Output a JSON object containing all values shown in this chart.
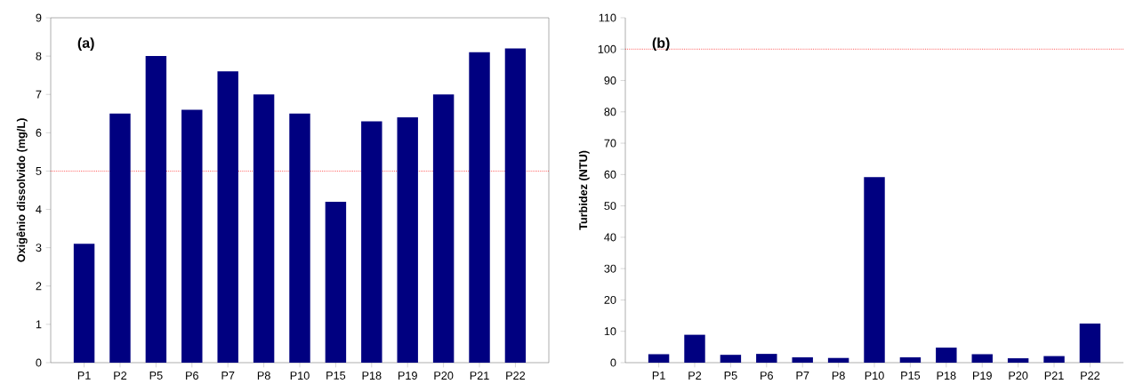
{
  "chart_data": [
    {
      "type": "bar",
      "ylabel": "Oxigênio dissolvido (mg/L)",
      "annotations": [
        "**(a)**"
      ],
      "categories": [
        "P1",
        "P2",
        "P5",
        "P6",
        "P7",
        "P8",
        "P10",
        "P15",
        "P18",
        "P19",
        "P20",
        "P21",
        "P22"
      ],
      "values": [
        3.1,
        6.5,
        8.0,
        6.6,
        7.6,
        7.0,
        6.5,
        4.2,
        6.3,
        6.4,
        7.0,
        8.1,
        8.2
      ],
      "color": "#000080",
      "ylim": [
        0,
        9
      ],
      "yticks": [
        0,
        1,
        2,
        3,
        4,
        5,
        6,
        7,
        8,
        9
      ],
      "ref_lines": [
        {
          "axis": "y",
          "value": 5,
          "color": "#ff0000",
          "line_style": "dotted"
        }
      ]
    },
    {
      "type": "bar",
      "ylabel": "Turbidez (NTU)",
      "annotations": [
        "**(b)**"
      ],
      "categories": [
        "P1",
        "P2",
        "P5",
        "P6",
        "P7",
        "P8",
        "P10",
        "P15",
        "P18",
        "P19",
        "P20",
        "P21",
        "P22"
      ],
      "values": [
        2.7,
        8.9,
        2.5,
        2.8,
        1.7,
        1.5,
        59.2,
        1.7,
        4.8,
        2.7,
        1.4,
        2.1,
        12.5
      ],
      "color": "#000080",
      "ylim": [
        0,
        110
      ],
      "yticks": [
        0,
        10,
        20,
        30,
        40,
        50,
        60,
        70,
        80,
        90,
        100,
        110
      ],
      "ref_lines": [
        {
          "axis": "y",
          "value": 100,
          "color": "#ff0000",
          "line_style": "dotted"
        }
      ]
    }
  ]
}
